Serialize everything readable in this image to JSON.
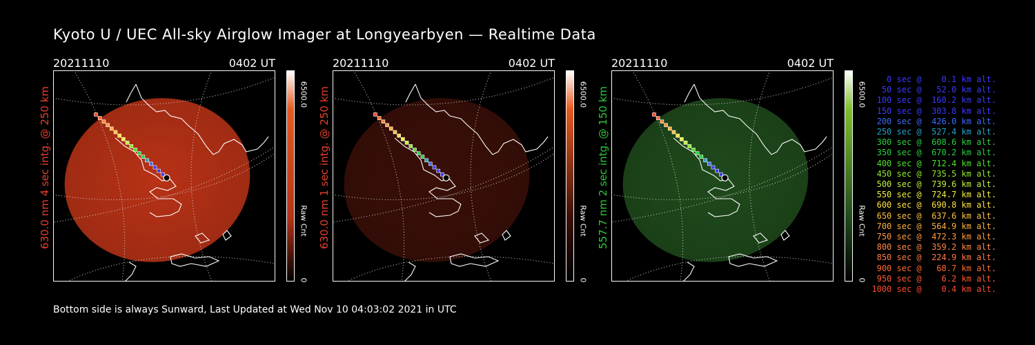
{
  "title": "Kyoto U / UEC All-sky Airglow Imager at Longyearbyen — Realtime Data",
  "footer": "Bottom side is always Sunward, Last Updated at Wed Nov 10 04:03:02 2021 in UTC",
  "panels": [
    {
      "date": "20211110",
      "time": "0402 UT",
      "ylabel": "630.0 nm  4 sec intg. @ 250 km",
      "label_color": "#e8402a",
      "cb_max": "6500.0",
      "cb_unit": "Raw Cnt",
      "cb_min": "0",
      "disk_color": "#b83216",
      "bar_top": "#e85a20"
    },
    {
      "date": "20211110",
      "time": "0402 UT",
      "ylabel": "630.0 nm  1 sec intg. @ 250 km",
      "label_color": "#e8402a",
      "cb_max": "6500.0",
      "cb_unit": "Raw Cnt",
      "cb_min": "0",
      "disk_color": "#3a0f08",
      "bar_top": "#e85a20"
    },
    {
      "date": "20211110",
      "time": "0402 UT",
      "ylabel": "557.7 nm  2 sec intg. @ 150 km",
      "label_color": "#2ec93a",
      "cb_max": "6500.0",
      "cb_unit": "Raw Cnt",
      "cb_min": "0",
      "disk_color": "#1f4a1c",
      "bar_top": "#7fbf2a"
    }
  ],
  "legend": [
    {
      "text": "   0 sec @    0.1 km alt.",
      "color": "#3a3aff"
    },
    {
      "text": "  50 sec @   52.0 km alt.",
      "color": "#3a3aff"
    },
    {
      "text": " 100 sec @  160.2 km alt.",
      "color": "#3a3aff"
    },
    {
      "text": " 150 sec @  303.8 km alt.",
      "color": "#3a3aff"
    },
    {
      "text": " 200 sec @  426.0 km alt.",
      "color": "#3a6cff"
    },
    {
      "text": " 250 sec @  527.4 km alt.",
      "color": "#2aa0c8"
    },
    {
      "text": " 300 sec @  608.6 km alt.",
      "color": "#2ad040"
    },
    {
      "text": " 350 sec @  670.2 km alt.",
      "color": "#2ad040"
    },
    {
      "text": " 400 sec @  712.4 km alt.",
      "color": "#50e030"
    },
    {
      "text": " 450 sec @  735.5 km alt.",
      "color": "#90e830"
    },
    {
      "text": " 500 sec @  739.6 km alt.",
      "color": "#c0f040"
    },
    {
      "text": " 550 sec @  724.7 km alt.",
      "color": "#f0f040"
    },
    {
      "text": " 600 sec @  690.8 km alt.",
      "color": "#ffe040"
    },
    {
      "text": " 650 sec @  637.6 km alt.",
      "color": "#ffc040"
    },
    {
      "text": " 700 sec @  564.9 km alt.",
      "color": "#ffb040"
    },
    {
      "text": " 750 sec @  472.3 km alt.",
      "color": "#ff9a40"
    },
    {
      "text": " 800 sec @  359.2 km alt.",
      "color": "#ff8a40"
    },
    {
      "text": " 850 sec @  224.9 km alt.",
      "color": "#ff7a40"
    },
    {
      "text": " 900 sec @   68.7 km alt.",
      "color": "#ff6a30"
    },
    {
      "text": " 950 sec @    6.2 km alt.",
      "color": "#ff5a30"
    },
    {
      "text": "1000 sec @    0.4 km alt.",
      "color": "#ff4a30"
    }
  ]
}
